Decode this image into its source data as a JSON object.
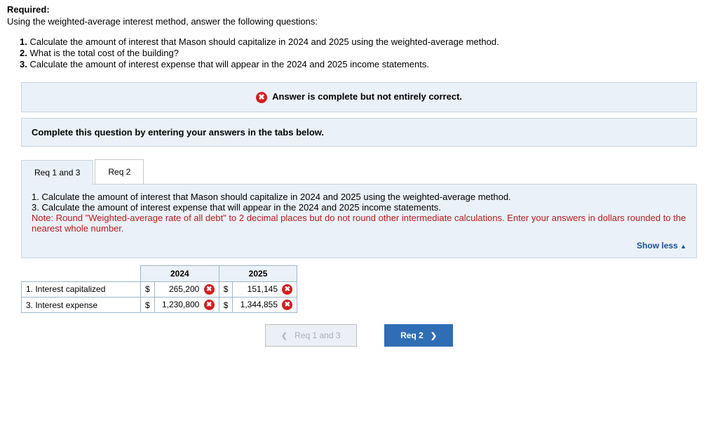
{
  "header": {
    "required_label": "Required:",
    "intro": "Using the weighted-average interest method, answer the following questions:"
  },
  "questions": [
    "Calculate the amount of interest that Mason should capitalize in 2024 and 2025 using the weighted-average method.",
    "What is the total cost of the building?",
    "Calculate the amount of interest expense that will appear in the 2024 and 2025 income statements."
  ],
  "status_banner": "Answer is complete but not entirely correct.",
  "instruction_banner": "Complete this question by entering your answers in the tabs below.",
  "tabs": {
    "tab1_label": "Req 1 and 3",
    "tab2_label": "Req 2"
  },
  "tab_body": {
    "line1": "1. Calculate the amount of interest that Mason should capitalize in 2024 and 2025 using the weighted-average method.",
    "line2": "3. Calculate the amount of interest expense that will appear in the 2024 and 2025 income statements.",
    "note": "Note: Round \"Weighted-average rate of all debt\" to 2 decimal places but do not round other intermediate calculations. Enter your answers in dollars rounded to the nearest whole number.",
    "show_less": "Show less"
  },
  "table": {
    "col_2024": "2024",
    "col_2025": "2025",
    "row1_label": "1. Interest capitalized",
    "row2_label": "3. Interest expense",
    "currency": "$",
    "r1_2024": "265,200",
    "r1_2025": "151,145",
    "r2_2024": "1,230,800",
    "r2_2025": "1,344,855"
  },
  "nav": {
    "prev": "Req 1 and 3",
    "next": "Req 2"
  }
}
